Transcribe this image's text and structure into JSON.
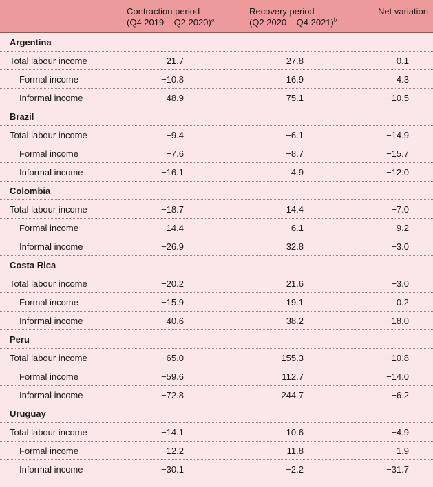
{
  "headers": {
    "col1_line1": "Contraction period",
    "col1_line2": "(Q4 2019 – Q2 2020)",
    "col1_sup": "a",
    "col2_line1": "Recovery period",
    "col2_line2": "(Q2 2020 – Q4 2021)",
    "col2_sup": "b",
    "col3": "Net variation"
  },
  "groups": [
    {
      "name": "Argentina",
      "rows": [
        {
          "label": "Total labour income",
          "contraction": "−21.7",
          "recovery": "27.8",
          "net": "0.1"
        },
        {
          "label": "Formal income",
          "contraction": "−10.8",
          "recovery": "16.9",
          "net": "4.3"
        },
        {
          "label": "Informal income",
          "contraction": "−48.9",
          "recovery": "75.1",
          "net": "−10.5"
        }
      ]
    },
    {
      "name": "Brazil",
      "rows": [
        {
          "label": "Total labour income",
          "contraction": "−9.4",
          "recovery": "−6.1",
          "net": "−14.9"
        },
        {
          "label": "Formal income",
          "contraction": "−7.6",
          "recovery": "−8.7",
          "net": "−15.7"
        },
        {
          "label": "Informal income",
          "contraction": "−16.1",
          "recovery": "4.9",
          "net": "−12.0"
        }
      ]
    },
    {
      "name": "Colombia",
      "rows": [
        {
          "label": "Total labour income",
          "contraction": "−18.7",
          "recovery": "14.4",
          "net": "−7.0"
        },
        {
          "label": "Formal income",
          "contraction": "−14.4",
          "recovery": "6.1",
          "net": "−9.2"
        },
        {
          "label": "Informal income",
          "contraction": "−26.9",
          "recovery": "32.8",
          "net": "−3.0"
        }
      ]
    },
    {
      "name": "Costa Rica",
      "rows": [
        {
          "label": "Total labour income",
          "contraction": "−20.2",
          "recovery": "21.6",
          "net": "−3.0"
        },
        {
          "label": "Formal income",
          "contraction": "−15.9",
          "recovery": "19.1",
          "net": "0.2"
        },
        {
          "label": "Informal income",
          "contraction": "−40.6",
          "recovery": "38.2",
          "net": "−18.0"
        }
      ]
    },
    {
      "name": "Peru",
      "rows": [
        {
          "label": "Total labour income",
          "contraction": "−65.0",
          "recovery": "155.3",
          "net": "−10.8"
        },
        {
          "label": "Formal income",
          "contraction": "−59.6",
          "recovery": "112.7",
          "net": "−14.0"
        },
        {
          "label": "Informal income",
          "contraction": "−72.8",
          "recovery": "244.7",
          "net": "−6.2"
        }
      ]
    },
    {
      "name": "Uruguay",
      "rows": [
        {
          "label": "Total labour income",
          "contraction": "−14.1",
          "recovery": "10.6",
          "net": "−4.9"
        },
        {
          "label": "Formal income",
          "contraction": "−12.2",
          "recovery": "11.8",
          "net": "−1.9"
        },
        {
          "label": "Informal income",
          "contraction": "−30.1",
          "recovery": "−2.2",
          "net": "−31.7"
        }
      ]
    }
  ]
}
